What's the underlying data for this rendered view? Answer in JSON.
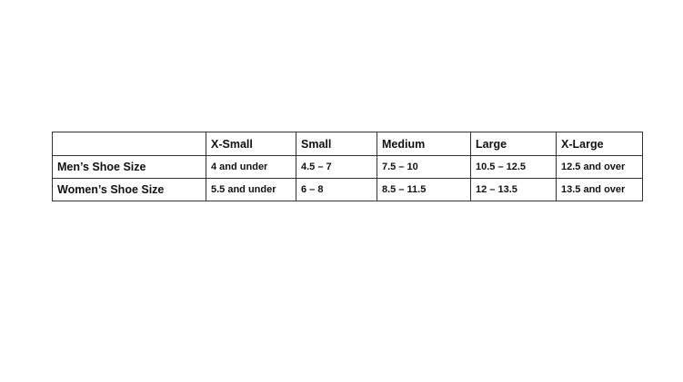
{
  "table": {
    "headers": [
      "",
      "X-Small",
      "Small",
      "Medium",
      "Large",
      "X-Large"
    ],
    "rows": [
      {
        "label": "Men’s Shoe Size",
        "values": [
          "4 and under",
          "4.5 – 7",
          "7.5 – 10",
          "10.5 – 12.5",
          "12.5 and over"
        ]
      },
      {
        "label": "Women’s Shoe Size",
        "values": [
          "5.5 and under",
          "6 – 8",
          "8.5 – 11.5",
          "12 – 13.5",
          "13.5 and over"
        ]
      }
    ]
  }
}
